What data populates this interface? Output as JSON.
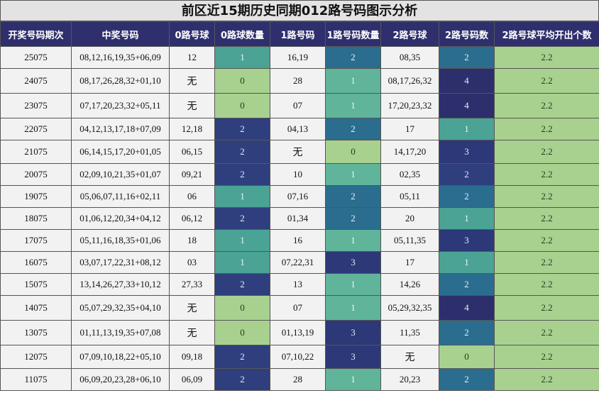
{
  "title": "前区近15期历史同期012路号码图示分析",
  "headers": [
    "开奖号码期次",
    "中奖号码",
    "0路号球",
    "0路球数量",
    "1路号码",
    "1路号码数量",
    "2路号球",
    "2路号码数",
    "2路号球平均开出个数"
  ],
  "rows": [
    {
      "period": "25075",
      "numbers": "08,12,16,19,35+06,09",
      "r0": "12",
      "r0n": "1",
      "r1": "16,19",
      "r1n": "2",
      "r2": "08,35",
      "r2n": "2",
      "avg": "2.2"
    },
    {
      "period": "24075",
      "numbers": "08,17,26,28,32+01,10",
      "r0": "无",
      "r0n": "0",
      "r1": "28",
      "r1n": "1",
      "r2": "08,17,26,32",
      "r2n": "4",
      "avg": "2.2"
    },
    {
      "period": "23075",
      "numbers": "07,17,20,23,32+05,11",
      "r0": "无",
      "r0n": "0",
      "r1": "07",
      "r1n": "1",
      "r2": "17,20,23,32",
      "r2n": "4",
      "avg": "2.2"
    },
    {
      "period": "22075",
      "numbers": "04,12,13,17,18+07,09",
      "r0": "12,18",
      "r0n": "2",
      "r1": "04,13",
      "r1n": "2",
      "r2": "17",
      "r2n": "1",
      "avg": "2.2"
    },
    {
      "period": "21075",
      "numbers": "06,14,15,17,20+01,05",
      "r0": "06,15",
      "r0n": "2",
      "r1": "无",
      "r1n": "0",
      "r2": "14,17,20",
      "r2n": "3",
      "avg": "2.2"
    },
    {
      "period": "20075",
      "numbers": "02,09,10,21,35+01,07",
      "r0": "09,21",
      "r0n": "2",
      "r1": "10",
      "r1n": "1",
      "r2": "02,35",
      "r2n": "2",
      "avg": "2.2"
    },
    {
      "period": "19075",
      "numbers": "05,06,07,11,16+02,11",
      "r0": "06",
      "r0n": "1",
      "r1": "07,16",
      "r1n": "2",
      "r2": "05,11",
      "r2n": "2",
      "avg": "2.2"
    },
    {
      "period": "18075",
      "numbers": "01,06,12,20,34+04,12",
      "r0": "06,12",
      "r0n": "2",
      "r1": "01,34",
      "r1n": "2",
      "r2": "20",
      "r2n": "1",
      "avg": "2.2"
    },
    {
      "period": "17075",
      "numbers": "05,11,16,18,35+01,06",
      "r0": "18",
      "r0n": "1",
      "r1": "16",
      "r1n": "1",
      "r2": "05,11,35",
      "r2n": "3",
      "avg": "2.2"
    },
    {
      "period": "16075",
      "numbers": "03,07,17,22,31+08,12",
      "r0": "03",
      "r0n": "1",
      "r1": "07,22,31",
      "r1n": "3",
      "r2": "17",
      "r2n": "1",
      "avg": "2.2"
    },
    {
      "period": "15075",
      "numbers": "13,14,26,27,33+10,12",
      "r0": "27,33",
      "r0n": "2",
      "r1": "13",
      "r1n": "1",
      "r2": "14,26",
      "r2n": "2",
      "avg": "2.2"
    },
    {
      "period": "14075",
      "numbers": "05,07,29,32,35+04,10",
      "r0": "无",
      "r0n": "0",
      "r1": "07",
      "r1n": "1",
      "r2": "05,29,32,35",
      "r2n": "4",
      "avg": "2.2"
    },
    {
      "period": "13075",
      "numbers": "01,11,13,19,35+07,08",
      "r0": "无",
      "r0n": "0",
      "r1": "01,13,19",
      "r1n": "3",
      "r2": "11,35",
      "r2n": "2",
      "avg": "2.2"
    },
    {
      "period": "12075",
      "numbers": "07,09,10,18,22+05,10",
      "r0": "09,18",
      "r0n": "2",
      "r1": "07,10,22",
      "r1n": "3",
      "r2": "无",
      "r2n": "0",
      "avg": "2.2"
    },
    {
      "period": "11075",
      "numbers": "06,09,20,23,28+06,10",
      "r0": "06,09",
      "r0n": "2",
      "r1": "28",
      "r1n": "1",
      "r2": "20,23",
      "r2n": "2",
      "avg": "2.2"
    }
  ]
}
